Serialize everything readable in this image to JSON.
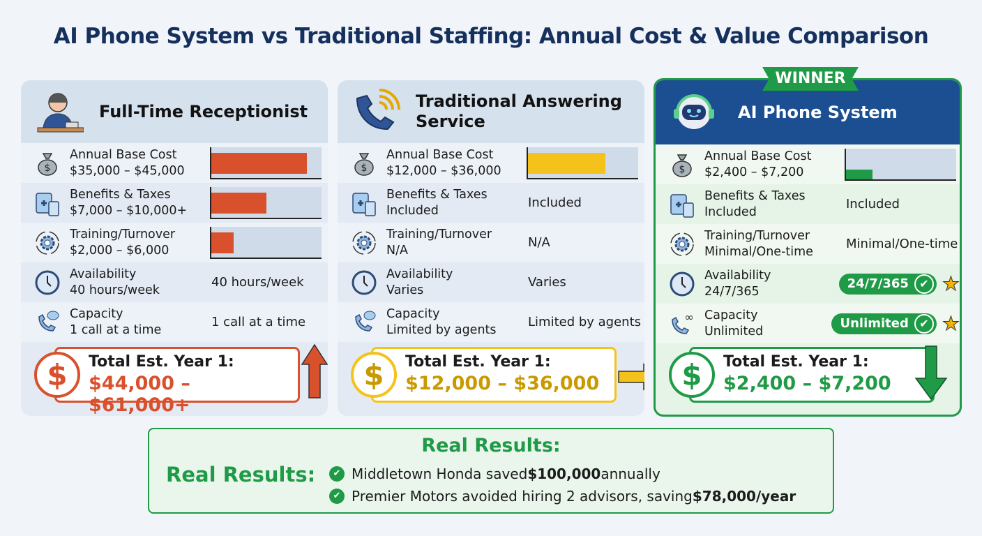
{
  "title": "AI Phone System vs Traditional Staffing: Annual Cost & Value Comparison",
  "colors": {
    "navy": "#15305c",
    "red": "#d9512c",
    "yellow": "#f5c21b",
    "green": "#1f9a46",
    "ai_header": "#1b4f91"
  },
  "panels": [
    {
      "title": "Full-Time Receptionist",
      "icon": "receptionist-icon",
      "accent": "#d9512c",
      "rows": [
        {
          "icon": "money-bag-icon",
          "label": "Annual Base Cost",
          "sub": "$35,000 – $45,000",
          "type": "bar",
          "level": 0.87
        },
        {
          "icon": "clipboard-calculator-icon",
          "label": "Benefits & Taxes",
          "sub": "$7,000 – $10,000+",
          "type": "bar",
          "level": 0.5
        },
        {
          "icon": "gear-cycle-icon",
          "label": "Training/Turnover",
          "sub": "$2,000 – $6,000",
          "type": "bar",
          "level": 0.2
        },
        {
          "icon": "clock-icon",
          "label": "Availability",
          "sub": "40 hours/week",
          "type": "text",
          "value": "40 hours/week"
        },
        {
          "icon": "phone-chat-icon",
          "label": "Capacity",
          "sub": "1 call at a time",
          "type": "text",
          "value": "1 call at a time"
        }
      ],
      "total_label": "Total Est. Year 1:",
      "total_value": "$44,000 – $61,000+",
      "arrow": "up"
    },
    {
      "title": "Traditional Answering Service",
      "icon": "phone-signal-icon",
      "accent": "#f5c21b",
      "total_color": "#c99a00",
      "rows": [
        {
          "icon": "money-bag-icon",
          "label": "Annual Base Cost",
          "sub": "$12,000 – $36,000",
          "type": "bar",
          "level": 0.7
        },
        {
          "icon": "clipboard-calculator-icon",
          "label": "Benefits & Taxes",
          "sub": "Included",
          "type": "text",
          "value": "Included"
        },
        {
          "icon": "gear-cycle-icon",
          "label": "Training/Turnover",
          "sub": "N/A",
          "type": "text",
          "value": "N/A"
        },
        {
          "icon": "clock-icon",
          "label": "Availability",
          "sub": "Varies",
          "type": "text",
          "value": "Varies"
        },
        {
          "icon": "phone-chat-icon",
          "label": "Capacity",
          "sub": "Limited by agents",
          "type": "text",
          "value": "Limited by agents"
        }
      ],
      "total_label": "Total Est. Year 1:",
      "total_value": "$12,000 – $36,000",
      "arrow": "right"
    },
    {
      "title": "AI Phone System",
      "badge": "WINNER",
      "icon": "robot-headset-icon",
      "accent": "#1f9a46",
      "rows": [
        {
          "icon": "money-bag-icon",
          "label": "Annual Base Cost",
          "sub": "$2,400 – $7,200",
          "type": "bar",
          "level": 0.24
        },
        {
          "icon": "clipboard-calculator-icon",
          "label": "Benefits & Taxes",
          "sub": "Included",
          "type": "text",
          "value": "Included"
        },
        {
          "icon": "gear-cycle-icon",
          "label": "Training/Turnover",
          "sub": "Minimal/One-time",
          "type": "text",
          "value": "Minimal/One-time"
        },
        {
          "icon": "clock-icon",
          "label": "Availability",
          "sub": "24/7/365",
          "type": "pill",
          "value": "24/7/365"
        },
        {
          "icon": "phone-infinity-icon",
          "label": "Capacity",
          "sub": "Unlimited",
          "type": "pill",
          "value": "Unlimited"
        }
      ],
      "total_label": "Total Est. Year 1:",
      "total_value": "$2,400 – $7,200",
      "arrow": "down"
    }
  ],
  "results": {
    "title": "Real Results:",
    "label": "Real Results:",
    "items": [
      {
        "text": "Middletown Honda saved ",
        "bold": "$100,000",
        "after": " annually"
      },
      {
        "text": "Premier Motors avoided hiring 2 advisors, saving ",
        "bold": "$78,000/year",
        "after": ""
      }
    ]
  }
}
